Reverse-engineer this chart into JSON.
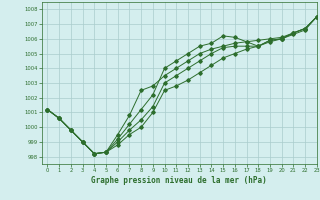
{
  "title": "Graphe pression niveau de la mer (hPa)",
  "bg_color": "#d4eeee",
  "grid_color": "#aacccc",
  "line_color": "#2d6e2d",
  "marker_color": "#2d6e2d",
  "xlim": [
    -0.5,
    23
  ],
  "ylim": [
    997.5,
    1008.5
  ],
  "yticks": [
    998,
    999,
    1000,
    1001,
    1002,
    1003,
    1004,
    1005,
    1006,
    1007,
    1008
  ],
  "xticks": [
    0,
    1,
    2,
    3,
    4,
    5,
    6,
    7,
    8,
    9,
    10,
    11,
    12,
    13,
    14,
    15,
    16,
    17,
    18,
    19,
    20,
    21,
    22,
    23
  ],
  "line1_x": [
    0,
    1,
    2,
    3,
    4,
    5,
    6,
    7,
    8,
    9,
    10,
    11,
    12,
    13,
    14,
    15,
    16,
    17,
    18,
    19,
    20,
    21,
    22,
    23
  ],
  "line1_y": [
    1001.2,
    1000.6,
    999.8,
    999.0,
    998.2,
    998.3,
    998.8,
    999.5,
    1000.0,
    1001.0,
    1002.5,
    1002.8,
    1003.2,
    1003.7,
    1004.2,
    1004.7,
    1005.0,
    1005.3,
    1005.5,
    1005.8,
    1006.0,
    1006.3,
    1006.6,
    1007.5
  ],
  "line2_x": [
    0,
    1,
    2,
    3,
    4,
    5,
    6,
    7,
    8,
    9,
    10,
    11,
    12,
    13,
    14,
    15,
    16,
    17,
    18,
    19,
    20,
    21,
    22,
    23
  ],
  "line2_y": [
    1001.2,
    1000.6,
    999.8,
    999.0,
    998.2,
    998.3,
    999.2,
    1000.2,
    1001.2,
    1002.2,
    1004.0,
    1004.5,
    1005.0,
    1005.5,
    1005.7,
    1006.2,
    1006.1,
    1005.8,
    1005.5,
    1005.9,
    1006.0,
    1006.4,
    1006.7,
    1007.5
  ],
  "line3_x": [
    0,
    1,
    2,
    3,
    4,
    5,
    6,
    7,
    8,
    9,
    10,
    11,
    12,
    13,
    14,
    15,
    16,
    17,
    18,
    19,
    20,
    21,
    22,
    23
  ],
  "line3_y": [
    1001.2,
    1000.6,
    999.8,
    999.0,
    998.2,
    998.3,
    999.0,
    999.8,
    1000.5,
    1001.4,
    1003.0,
    1003.5,
    1004.0,
    1004.5,
    1005.0,
    1005.4,
    1005.5,
    1005.5,
    1005.5,
    1005.9,
    1006.0,
    1006.4,
    1006.7,
    1007.5
  ],
  "line4_x": [
    0,
    1,
    2,
    3,
    4,
    5,
    6,
    7,
    8,
    9,
    10,
    11,
    12,
    13,
    14,
    15,
    16,
    17,
    18,
    19,
    20,
    21,
    22,
    23
  ],
  "line4_y": [
    1001.2,
    1000.6,
    999.8,
    999.0,
    998.2,
    998.3,
    999.5,
    1000.8,
    1002.5,
    1002.8,
    1003.5,
    1004.0,
    1004.5,
    1005.0,
    1005.3,
    1005.5,
    1005.7,
    1005.8,
    1005.9,
    1006.0,
    1006.1,
    1006.4,
    1006.7,
    1007.5
  ]
}
